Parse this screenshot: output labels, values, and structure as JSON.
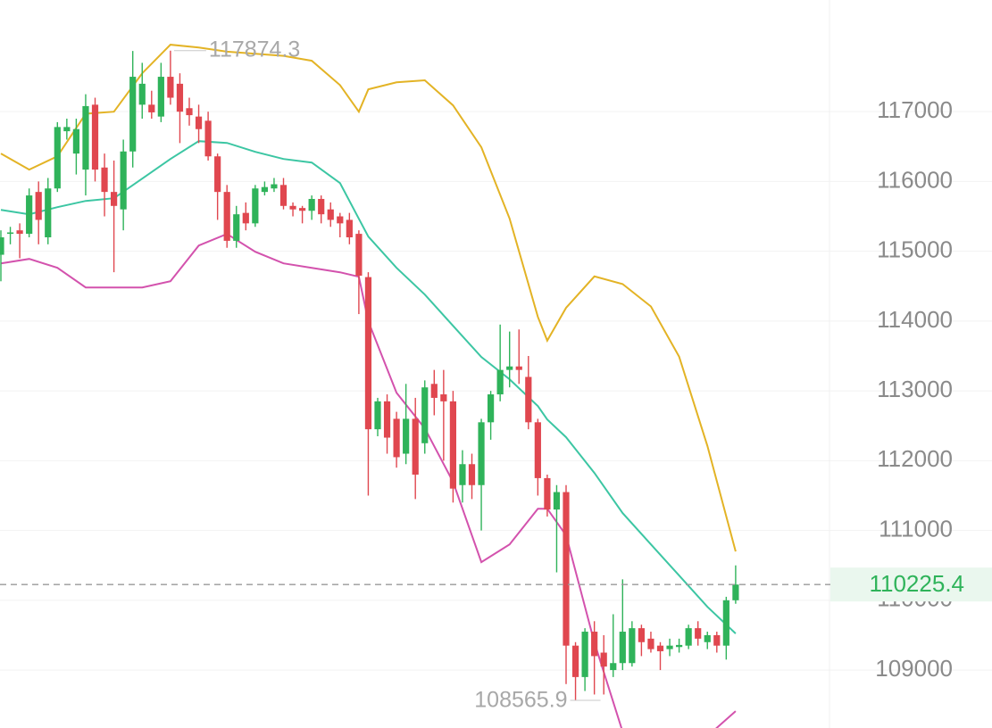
{
  "chart_data": {
    "type": "candlestick",
    "up_color": "#2fb35a",
    "down_color": "#e0474f",
    "ylim": [
      108170,
      118600
    ],
    "yticks": [
      109000,
      110000,
      111000,
      112000,
      113000,
      114000,
      115000,
      116000,
      117000
    ],
    "grid": true,
    "price_line": true,
    "open": [
      114950,
      115250,
      115300,
      115250,
      115850,
      115200,
      115900,
      116720,
      116400,
      116170,
      117100,
      116200,
      115850,
      115600,
      116430,
      117100,
      117100,
      116930,
      117500,
      117400,
      117050,
      116930,
      116870,
      116360,
      115850,
      115150,
      115550,
      115400,
      115850,
      115900,
      115950,
      115650,
      115620,
      115580,
      115750,
      115600,
      115500,
      115450,
      115250,
      114630,
      112450,
      112850,
      112600,
      112100,
      112600,
      112250,
      113100,
      112950,
      112850,
      111650,
      111950,
      111650,
      112550,
      112950,
      113300,
      113350,
      113200,
      112550,
      111750,
      111300,
      111550,
      109350,
      108900,
      109550,
      109250,
      109000,
      109100,
      109100,
      109600,
      109450,
      109350,
      109300,
      109330,
      109350,
      109600,
      109400,
      109500,
      109350,
      110000
    ],
    "high": [
      115300,
      115350,
      115400,
      115900,
      116000,
      116050,
      116850,
      116900,
      116900,
      117250,
      117200,
      116400,
      116300,
      116600,
      117870,
      117700,
      117300,
      117700,
      117874.3,
      117550,
      117200,
      117100,
      117000,
      116400,
      115950,
      115650,
      115700,
      115950,
      116000,
      116050,
      116050,
      115700,
      115650,
      115800,
      115800,
      115700,
      115550,
      115550,
      115300,
      114700,
      112900,
      112950,
      112700,
      113100,
      112900,
      113150,
      113300,
      113300,
      113000,
      112150,
      112100,
      112600,
      113000,
      113950,
      113850,
      113880,
      113500,
      112600,
      111800,
      111650,
      111650,
      109400,
      109600,
      109700,
      109500,
      109800,
      110300,
      109700,
      109650,
      109550,
      109400,
      109450,
      109450,
      109650,
      109700,
      109550,
      109550,
      110050,
      110500
    ],
    "low": [
      114570,
      115100,
      114900,
      115200,
      115100,
      115100,
      115850,
      116600,
      116100,
      115800,
      116000,
      115500,
      114700,
      115300,
      116200,
      116900,
      116900,
      116850,
      117100,
      116550,
      116800,
      116550,
      116300,
      115450,
      115050,
      115050,
      115300,
      115350,
      115800,
      115850,
      115600,
      115500,
      115400,
      115450,
      115400,
      115350,
      115200,
      115100,
      114100,
      111500,
      112350,
      112100,
      111900,
      111950,
      111450,
      112100,
      112650,
      112000,
      111400,
      111400,
      111450,
      111000,
      112300,
      112850,
      113050,
      113100,
      112450,
      111500,
      111200,
      110400,
      108800,
      108565.9,
      108700,
      108650,
      108650,
      108900,
      109000,
      109050,
      109200,
      109250,
      109000,
      109200,
      109250,
      109300,
      109350,
      109300,
      109250,
      109150,
      109950
    ],
    "close": [
      115200,
      115270,
      115250,
      115800,
      115450,
      115900,
      116780,
      116780,
      116750,
      117080,
      116170,
      115850,
      115650,
      116430,
      117500,
      117400,
      116990,
      117500,
      117200,
      117000,
      116950,
      116750,
      116360,
      115850,
      115150,
      115530,
      115400,
      115900,
      115920,
      115960,
      115650,
      115600,
      115580,
      115750,
      115530,
      115450,
      115400,
      115200,
      114650,
      112450,
      112850,
      112330,
      112050,
      112600,
      111800,
      113050,
      112900,
      112850,
      111600,
      111950,
      111650,
      112550,
      112950,
      113300,
      113350,
      113300,
      112550,
      111750,
      111300,
      111550,
      109350,
      108900,
      109550,
      109200,
      109050,
      109100,
      109550,
      109600,
      109400,
      109300,
      109270,
      109350,
      109360,
      109600,
      109450,
      109500,
      109350,
      110000,
      110225.4
    ],
    "lines": [
      {
        "color": "#e3b325",
        "x": [
          0,
          3,
          6,
          9,
          12,
          15,
          18,
          21,
          24,
          27,
          30,
          33,
          36,
          38,
          39,
          42,
          45,
          48,
          51,
          54,
          57,
          58,
          60,
          63,
          66,
          69,
          72,
          75,
          78
        ],
        "values": [
          116400,
          116170,
          116360,
          116970,
          117000,
          117550,
          117960,
          117920,
          117860,
          117830,
          117800,
          117730,
          117380,
          117000,
          117320,
          117420,
          117450,
          117090,
          116490,
          115470,
          114060,
          113720,
          114190,
          114640,
          114530,
          114210,
          113490,
          112210,
          110700
        ]
      },
      {
        "color": "#3cc6a3",
        "x": [
          0,
          3,
          6,
          9,
          12,
          15,
          18,
          21,
          24,
          27,
          30,
          33,
          36,
          38,
          39,
          42,
          45,
          48,
          51,
          54,
          57,
          58,
          60,
          63,
          66,
          69,
          72,
          75,
          78
        ],
        "values": [
          115594,
          115530,
          115632,
          115722,
          115760,
          116041,
          116322,
          116578,
          116552,
          116424,
          116322,
          116271,
          115977,
          115466,
          115210,
          114763,
          114380,
          113932,
          113485,
          113166,
          112782,
          112590,
          112335,
          111824,
          111249,
          110801,
          110354,
          109906,
          109523
        ]
      },
      {
        "color": "#d352ad",
        "x": [
          0,
          3,
          6,
          9,
          12,
          15,
          18,
          21,
          24,
          27,
          30,
          33,
          36,
          38,
          39,
          42,
          45,
          48,
          51,
          54,
          57,
          58,
          60,
          63,
          66,
          69,
          72,
          75,
          78
        ],
        "values": [
          114827,
          114891,
          114763,
          114482,
          114482,
          114482,
          114571,
          115083,
          115249,
          114993,
          114827,
          114763,
          114699,
          114635,
          113996,
          112974,
          112462,
          111696,
          110546,
          110801,
          111312,
          111312,
          110929,
          109396,
          108117,
          107862,
          107734,
          108054,
          108411
        ]
      }
    ]
  }
}
